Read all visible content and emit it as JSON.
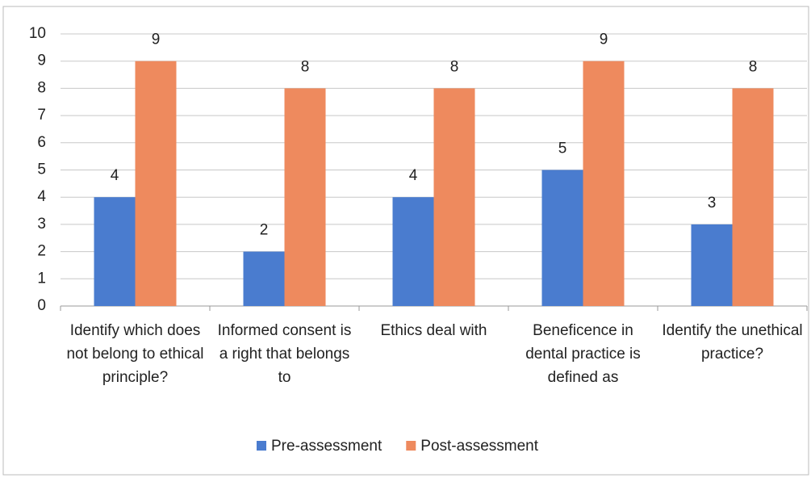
{
  "chart_data": {
    "type": "bar",
    "categories": [
      "Identify which does not belong to ethical principle?",
      "Informed consent is a right that belongs to",
      "Ethics deal with",
      "Beneficence in dental practice is defined as",
      "Identify the unethical practice?"
    ],
    "series": [
      {
        "name": "Pre-assessment",
        "color": "#4a7ccf",
        "values": [
          4,
          2,
          4,
          5,
          3
        ]
      },
      {
        "name": "Post-assessment",
        "color": "#ee8a5e",
        "values": [
          9,
          8,
          8,
          9,
          8
        ]
      }
    ],
    "ylim": [
      0,
      10
    ],
    "yticks": [
      0,
      1,
      2,
      3,
      4,
      5,
      6,
      7,
      8,
      9,
      10
    ],
    "grid": true,
    "legend": "bottom"
  }
}
